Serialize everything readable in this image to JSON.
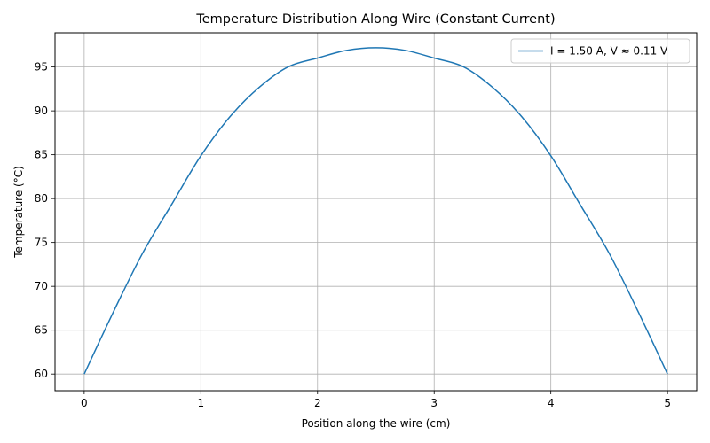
{
  "chart_data": {
    "type": "line",
    "title": "Temperature Distribution Along Wire (Constant Current)",
    "xlabel": "Position along the wire (cm)",
    "ylabel": "Temperature (°C)",
    "xlim": [
      -0.25,
      5.25
    ],
    "ylim": [
      58.1,
      98.9
    ],
    "xticks": [
      0,
      1,
      2,
      3,
      4,
      5
    ],
    "xtick_labels": [
      "0",
      "1",
      "2",
      "3",
      "4",
      "5"
    ],
    "yticks": [
      60,
      65,
      70,
      75,
      80,
      85,
      90,
      95
    ],
    "ytick_labels": [
      "60",
      "65",
      "70",
      "75",
      "80",
      "85",
      "90",
      "95"
    ],
    "grid": true,
    "legend_position": "top-right",
    "series": [
      {
        "name": "I = 1.50 A, V ≈ 0.11 V",
        "color": "#1f77b4",
        "x": [
          0,
          0.25,
          0.5,
          0.75,
          1.0,
          1.25,
          1.5,
          1.75,
          2.0,
          2.25,
          2.5,
          2.75,
          3.0,
          3.25,
          3.5,
          3.75,
          4.0,
          4.25,
          4.5,
          4.75,
          5.0
        ],
        "y": [
          60.0,
          67.07,
          73.76,
          79.34,
          84.88,
          89.34,
          92.68,
          95.03,
          96.02,
          96.9,
          97.2,
          96.9,
          96.02,
          95.03,
          92.68,
          89.34,
          84.88,
          79.34,
          73.76,
          67.07,
          60.0
        ]
      }
    ]
  }
}
